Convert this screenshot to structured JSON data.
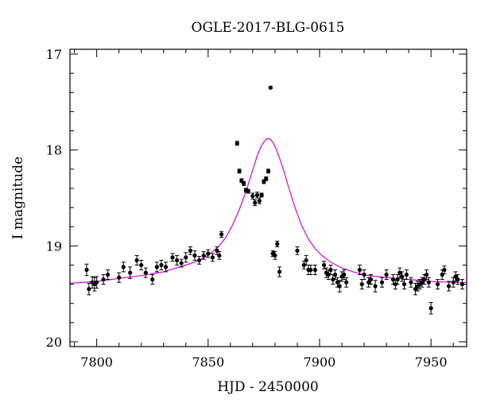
{
  "chart_data": {
    "type": "scatter",
    "title": "OGLE-2017-BLG-0615",
    "xlabel": "HJD - 2450000",
    "ylabel": "I magnitude",
    "xlim": [
      7788,
      7966
    ],
    "ylim": [
      20.05,
      16.95
    ],
    "y_inverted": true,
    "x_ticks": [
      7800,
      7850,
      7900,
      7950
    ],
    "y_ticks": [
      17,
      18,
      19,
      20
    ],
    "grid": false,
    "legend": "none",
    "colors": {
      "points": "#000000",
      "model": "#e000e0"
    },
    "series": [
      {
        "type": "errorbar_points",
        "x": [
          7795.5,
          7796.5,
          7798,
          7799,
          7800,
          7803,
          7805,
          7810,
          7812,
          7815,
          7818,
          7820,
          7822,
          7825,
          7827,
          7829,
          7831,
          7834,
          7836,
          7838,
          7840,
          7842,
          7844,
          7846,
          7848,
          7850,
          7852,
          7854,
          7855,
          7856,
          7863,
          7864,
          7865,
          7866,
          7867,
          7868,
          7870,
          7871,
          7872,
          7873,
          7874,
          7875,
          7876,
          7877,
          7878,
          7879,
          7880,
          7881,
          7882,
          7890,
          7893,
          7894,
          7895,
          7896,
          7898,
          7902,
          7903,
          7904,
          7905,
          7906,
          7907,
          7908,
          7909,
          7910,
          7911,
          7912,
          7918,
          7919,
          7920,
          7922,
          7923,
          7925,
          7928,
          7930,
          7933,
          7934,
          7935,
          7936,
          7937,
          7938,
          7939,
          7941,
          7943,
          7944,
          7945,
          7946,
          7947,
          7948,
          7949,
          7950,
          7953,
          7955,
          7956,
          7958,
          7960,
          7961,
          7962,
          7964
        ],
        "y": [
          19.25,
          19.45,
          19.38,
          19.4,
          19.38,
          19.35,
          19.3,
          19.33,
          19.22,
          19.28,
          19.15,
          19.2,
          19.28,
          19.35,
          19.22,
          19.2,
          19.22,
          19.12,
          19.15,
          19.18,
          19.12,
          19.05,
          19.1,
          19.15,
          19.1,
          19.08,
          19.12,
          19.05,
          19.1,
          18.88,
          17.93,
          18.22,
          18.32,
          18.35,
          18.42,
          18.43,
          18.48,
          18.55,
          18.47,
          18.53,
          18.47,
          18.33,
          18.3,
          18.22,
          17.35,
          19.08,
          19.1,
          18.98,
          19.27,
          19.05,
          19.2,
          19.15,
          19.25,
          19.25,
          19.25,
          19.2,
          19.28,
          19.3,
          19.25,
          19.35,
          19.3,
          19.38,
          19.42,
          19.32,
          19.3,
          19.38,
          19.25,
          19.4,
          19.3,
          19.38,
          19.35,
          19.42,
          19.38,
          19.3,
          19.35,
          19.4,
          19.35,
          19.28,
          19.32,
          19.4,
          19.3,
          19.38,
          19.45,
          19.42,
          19.4,
          19.38,
          19.35,
          19.3,
          19.38,
          19.65,
          19.4,
          19.3,
          19.25,
          19.42,
          19.38,
          19.32,
          19.35,
          19.4
        ],
        "err": [
          0.06,
          0.06,
          0.06,
          0.07,
          0.06,
          0.05,
          0.05,
          0.05,
          0.05,
          0.06,
          0.05,
          0.05,
          0.05,
          0.05,
          0.05,
          0.05,
          0.05,
          0.04,
          0.05,
          0.04,
          0.05,
          0.04,
          0.05,
          0.04,
          0.04,
          0.04,
          0.04,
          0.04,
          0.04,
          0.03,
          0.02,
          0.02,
          0.02,
          0.02,
          0.02,
          0.02,
          0.03,
          0.03,
          0.03,
          0.03,
          0.02,
          0.02,
          0.02,
          0.02,
          0.01,
          0.03,
          0.04,
          0.03,
          0.05,
          0.04,
          0.04,
          0.05,
          0.05,
          0.05,
          0.05,
          0.04,
          0.05,
          0.05,
          0.05,
          0.05,
          0.05,
          0.05,
          0.06,
          0.05,
          0.05,
          0.05,
          0.05,
          0.05,
          0.05,
          0.05,
          0.05,
          0.06,
          0.05,
          0.05,
          0.05,
          0.05,
          0.05,
          0.05,
          0.05,
          0.05,
          0.05,
          0.05,
          0.06,
          0.05,
          0.05,
          0.05,
          0.05,
          0.05,
          0.05,
          0.06,
          0.05,
          0.05,
          0.04,
          0.05,
          0.05,
          0.05,
          0.05,
          0.05
        ]
      },
      {
        "type": "model_curve",
        "x": [
          7788,
          7800,
          7810,
          7820,
          7830,
          7840,
          7845,
          7850,
          7855,
          7858,
          7861,
          7864,
          7867,
          7870,
          7872,
          7874,
          7876,
          7877,
          7878,
          7879,
          7880,
          7882,
          7884,
          7886,
          7889,
          7892,
          7895,
          7898,
          7901,
          7905,
          7910,
          7915,
          7920,
          7925,
          7930,
          7940,
          7950,
          7960,
          7966
        ],
        "y": [
          19.39,
          19.37,
          19.34,
          19.31,
          19.27,
          19.2,
          19.16,
          19.1,
          19.0,
          18.91,
          18.78,
          18.62,
          18.43,
          18.21,
          18.06,
          17.95,
          17.89,
          17.88,
          17.89,
          17.92,
          17.96,
          18.08,
          18.22,
          18.38,
          18.6,
          18.79,
          18.93,
          19.03,
          19.1,
          19.17,
          19.23,
          19.27,
          19.3,
          19.32,
          19.33,
          19.35,
          19.37,
          19.38,
          19.38
        ]
      }
    ]
  }
}
